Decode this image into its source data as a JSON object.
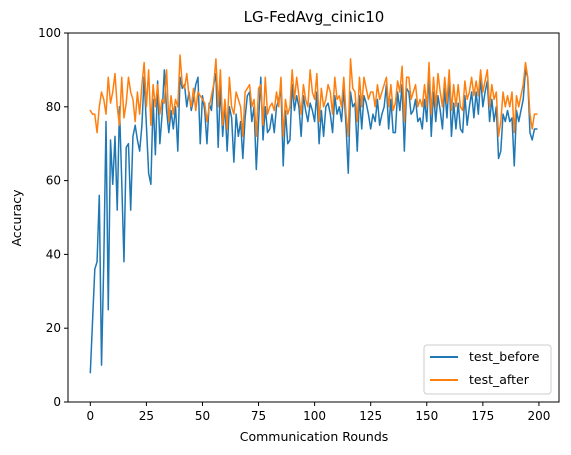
{
  "chart_data": {
    "type": "line",
    "title": "LG-FedAvg_cinic10",
    "xlabel": "Communication Rounds",
    "ylabel": "Accuracy",
    "xlim": [
      -9.95,
      208.95
    ],
    "ylim": [
      0,
      100
    ],
    "xticks": [
      0,
      25,
      50,
      75,
      100,
      125,
      150,
      175,
      200
    ],
    "yticks": [
      0,
      20,
      40,
      60,
      80,
      100
    ],
    "legend_position": "lower right",
    "x": [
      0,
      1,
      2,
      3,
      4,
      5,
      6,
      7,
      8,
      9,
      10,
      11,
      12,
      13,
      14,
      15,
      16,
      17,
      18,
      19,
      20,
      21,
      22,
      23,
      24,
      25,
      26,
      27,
      28,
      29,
      30,
      31,
      32,
      33,
      34,
      35,
      36,
      37,
      38,
      39,
      40,
      41,
      42,
      43,
      44,
      45,
      46,
      47,
      48,
      49,
      50,
      51,
      52,
      53,
      54,
      55,
      56,
      57,
      58,
      59,
      60,
      61,
      62,
      63,
      64,
      65,
      66,
      67,
      68,
      69,
      70,
      71,
      72,
      73,
      74,
      75,
      76,
      77,
      78,
      79,
      80,
      81,
      82,
      83,
      84,
      85,
      86,
      87,
      88,
      89,
      90,
      91,
      92,
      93,
      94,
      95,
      96,
      97,
      98,
      99,
      100,
      101,
      102,
      103,
      104,
      105,
      106,
      107,
      108,
      109,
      110,
      111,
      112,
      113,
      114,
      115,
      116,
      117,
      118,
      119,
      120,
      121,
      122,
      123,
      124,
      125,
      126,
      127,
      128,
      129,
      130,
      131,
      132,
      133,
      134,
      135,
      136,
      137,
      138,
      139,
      140,
      141,
      142,
      143,
      144,
      145,
      146,
      147,
      148,
      149,
      150,
      151,
      152,
      153,
      154,
      155,
      156,
      157,
      158,
      159,
      160,
      161,
      162,
      163,
      164,
      165,
      166,
      167,
      168,
      169,
      170,
      171,
      172,
      173,
      174,
      175,
      176,
      177,
      178,
      179,
      180,
      181,
      182,
      183,
      184,
      185,
      186,
      187,
      188,
      189,
      190,
      191,
      192,
      193,
      194,
      195,
      196,
      197,
      198,
      199
    ],
    "series": [
      {
        "name": "test_before",
        "color": "#1f77b4",
        "values": [
          8,
          22,
          36,
          38,
          56,
          10,
          38,
          76,
          25,
          71,
          59,
          72,
          52,
          80,
          60,
          38,
          69,
          70,
          52,
          72,
          75,
          71,
          68,
          75,
          88,
          75,
          62,
          59,
          82,
          67,
          87,
          70,
          78,
          90,
          79,
          73,
          79,
          74,
          80,
          68,
          88,
          85,
          86,
          80,
          84,
          79,
          82,
          86,
          88,
          70,
          83,
          79,
          70,
          81,
          79,
          86,
          89,
          69,
          86,
          72,
          81,
          68,
          80,
          77,
          65,
          78,
          72,
          76,
          66,
          77,
          83,
          84,
          76,
          80,
          63,
          76,
          88,
          71,
          80,
          73,
          74,
          78,
          73,
          80,
          82,
          85,
          64,
          79,
          70,
          71,
          86,
          79,
          83,
          80,
          72,
          83,
          79,
          76,
          81,
          79,
          76,
          84,
          70,
          79,
          72,
          80,
          81,
          78,
          73,
          83,
          78,
          80,
          76,
          85,
          75,
          62,
          84,
          80,
          81,
          68,
          83,
          74,
          83,
          81,
          78,
          74,
          78,
          76,
          82,
          75,
          78,
          80,
          86,
          74,
          82,
          73,
          73,
          84,
          79,
          86,
          68,
          85,
          84,
          78,
          79,
          82,
          76,
          77,
          74,
          82,
          76,
          89,
          72,
          84,
          76,
          83,
          79,
          74,
          85,
          77,
          88,
          72,
          81,
          74,
          81,
          74,
          73,
          83,
          75,
          80,
          84,
          77,
          84,
          78,
          88,
          80,
          84,
          87,
          76,
          82,
          76,
          80,
          66,
          68,
          78,
          76,
          79,
          76,
          77,
          64,
          79,
          76,
          79,
          82,
          90,
          88,
          73,
          71,
          74,
          74
        ]
      },
      {
        "name": "test_after",
        "color": "#ff7f0e",
        "values": [
          79,
          78,
          78,
          73,
          80,
          84,
          82,
          78,
          88,
          81,
          84,
          89,
          80,
          75,
          88,
          77,
          81,
          88,
          84,
          82,
          76,
          84,
          78,
          86,
          92,
          80,
          90,
          75,
          86,
          80,
          86,
          78,
          82,
          81,
          90,
          76,
          83,
          78,
          82,
          80,
          94,
          86,
          85,
          89,
          83,
          80,
          85,
          79,
          84,
          83,
          82,
          81,
          76,
          80,
          83,
          86,
          93,
          80,
          90,
          75,
          82,
          74,
          88,
          80,
          78,
          84,
          82,
          80,
          72,
          84,
          85,
          86,
          80,
          82,
          72,
          85,
          86,
          75,
          88,
          78,
          80,
          81,
          79,
          84,
          80,
          88,
          72,
          82,
          78,
          80,
          90,
          82,
          88,
          83,
          78,
          86,
          82,
          80,
          90,
          84,
          82,
          89,
          76,
          85,
          80,
          82,
          86,
          84,
          78,
          88,
          82,
          83,
          80,
          88,
          78,
          72,
          93,
          85,
          84,
          76,
          88,
          80,
          88,
          85,
          82,
          84,
          84,
          80,
          86,
          82,
          84,
          86,
          88,
          80,
          86,
          79,
          81,
          87,
          84,
          91,
          76,
          88,
          88,
          82,
          84,
          86,
          80,
          82,
          80,
          86,
          80,
          92,
          78,
          88,
          80,
          89,
          84,
          80,
          88,
          81,
          90,
          79,
          86,
          80,
          86,
          80,
          79,
          87,
          82,
          84,
          88,
          83,
          87,
          83,
          90,
          84,
          87,
          90,
          80,
          86,
          82,
          84,
          72,
          76,
          84,
          80,
          83,
          80,
          84,
          73,
          83,
          80,
          83,
          86,
          92,
          88,
          78,
          74,
          78,
          78
        ]
      }
    ]
  }
}
